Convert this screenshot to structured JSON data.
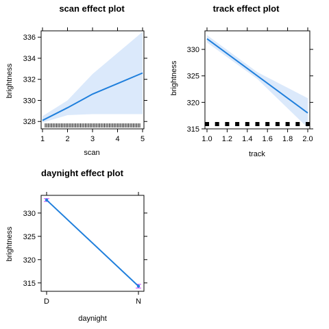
{
  "chart_data": [
    {
      "id": "scan",
      "type": "line",
      "title": "scan effect plot",
      "xlabel": "scan",
      "ylabel": "brightness",
      "xlim": [
        1,
        5
      ],
      "ylim": [
        327.3,
        336.6
      ],
      "xticks": [
        1,
        2,
        3,
        4,
        5
      ],
      "yticks": [
        328,
        330,
        332,
        334,
        336
      ],
      "series": [
        {
          "x": [
            1,
            2,
            3,
            4,
            5
          ],
          "y": [
            328.1,
            329.3,
            330.6,
            331.6,
            332.6
          ],
          "lower": [
            327.9,
            328.6,
            328.7,
            328.7,
            328.7
          ],
          "upper": [
            328.5,
            330.0,
            332.5,
            334.5,
            336.5
          ]
        }
      ],
      "rug": "x",
      "color": "#1f7fdc",
      "band_color": "#dbe9fb"
    },
    {
      "id": "track",
      "type": "line",
      "title": "track effect plot",
      "xlabel": "track",
      "ylabel": "brightness",
      "xlim": [
        1.0,
        2.0
      ],
      "ylim": [
        315,
        333.5
      ],
      "xticks": [
        1.0,
        1.2,
        1.4,
        1.6,
        1.8,
        2.0
      ],
      "xtick_labels": [
        "1.0",
        "1.2",
        "1.4",
        "1.6",
        "1.8",
        "2.0"
      ],
      "yticks": [
        315,
        320,
        325,
        330
      ],
      "series": [
        {
          "x": [
            1.0,
            1.5,
            2.0
          ],
          "y": [
            332.0,
            325.0,
            318.0
          ],
          "lower": [
            331.3,
            324.4,
            315.2
          ],
          "upper": [
            332.7,
            325.7,
            320.8
          ]
        }
      ],
      "rug": "x",
      "color": "#1f7fdc",
      "band_color": "#dbe9fb"
    },
    {
      "id": "daynight",
      "type": "line",
      "title": "daynight effect plot",
      "xlabel": "daynight",
      "ylabel": "brightness",
      "categories": [
        "D",
        "N"
      ],
      "ylim": [
        313.2,
        333.8
      ],
      "yticks": [
        315,
        320,
        325,
        330
      ],
      "series": [
        {
          "x": [
            "D",
            "N"
          ],
          "y": [
            332.8,
            314.3
          ],
          "lower": [
            332.5,
            313.9
          ],
          "upper": [
            333.1,
            314.7
          ]
        }
      ],
      "color": "#1f7fdc",
      "errorbar_color": "#d05cff"
    }
  ]
}
